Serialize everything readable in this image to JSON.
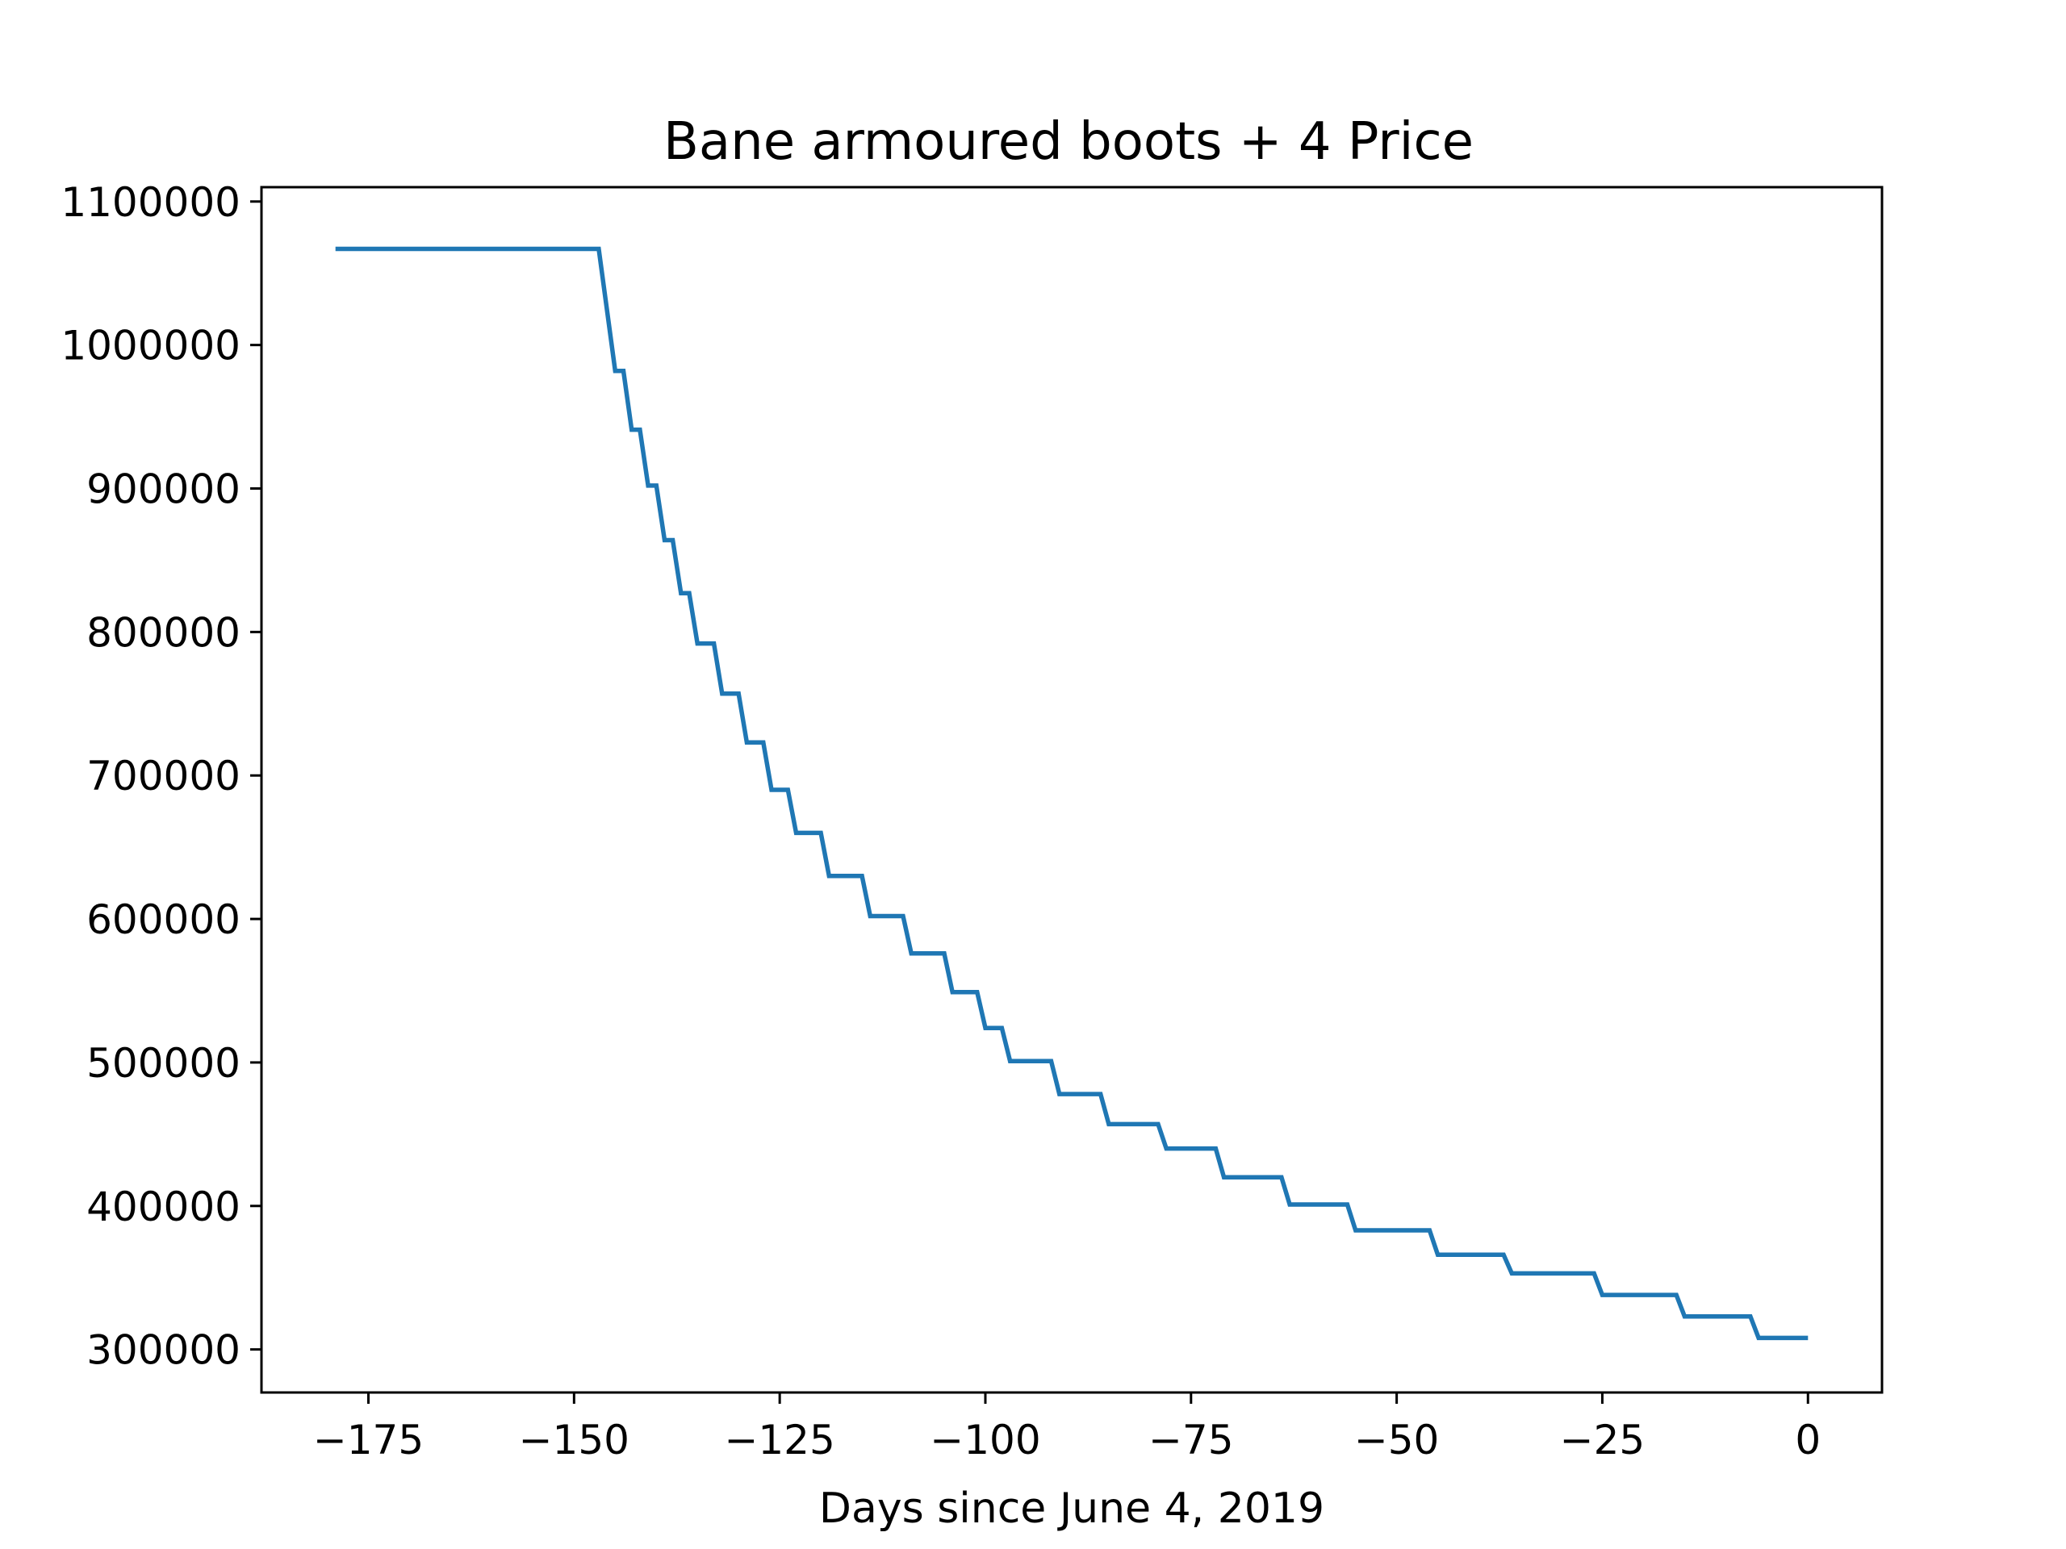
{
  "chart_data": {
    "type": "line",
    "title": "Bane armoured boots + 4 Price",
    "xlabel": "Days since June 4, 2019",
    "ylabel": "",
    "xlim": [
      -188,
      9
    ],
    "ylim": [
      270000,
      1110000
    ],
    "xticks": [
      -175,
      -150,
      -125,
      -100,
      -75,
      -50,
      -25,
      0
    ],
    "xtick_labels": [
      "−175",
      "−150",
      "−125",
      "−100",
      "−75",
      "−50",
      "−25",
      "0"
    ],
    "yticks": [
      300000,
      400000,
      500000,
      600000,
      700000,
      800000,
      900000,
      1000000,
      1100000
    ],
    "ytick_labels": [
      "300000",
      "400000",
      "500000",
      "600000",
      "700000",
      "800000",
      "900000",
      "1000000",
      "1100000"
    ],
    "grid": false,
    "series_color": "#1f77b4",
    "series": [
      {
        "name": "",
        "points": [
          [
            -179,
            1067000
          ],
          [
            -147,
            1067000
          ],
          [
            -145,
            982000
          ],
          [
            -144,
            982000
          ],
          [
            -143,
            941000
          ],
          [
            -142,
            941000
          ],
          [
            -141,
            902000
          ],
          [
            -140,
            902000
          ],
          [
            -139,
            864000
          ],
          [
            -138,
            864000
          ],
          [
            -137,
            827000
          ],
          [
            -136,
            827000
          ],
          [
            -135,
            792000
          ],
          [
            -133,
            792000
          ],
          [
            -132,
            757000
          ],
          [
            -130,
            757000
          ],
          [
            -129,
            723000
          ],
          [
            -127,
            723000
          ],
          [
            -126,
            690000
          ],
          [
            -124,
            690000
          ],
          [
            -123,
            660000
          ],
          [
            -120,
            660000
          ],
          [
            -119,
            630000
          ],
          [
            -115,
            630000
          ],
          [
            -114,
            602000
          ],
          [
            -110,
            602000
          ],
          [
            -109,
            576000
          ],
          [
            -105,
            576000
          ],
          [
            -104,
            549000
          ],
          [
            -101,
            549000
          ],
          [
            -100,
            524000
          ],
          [
            -98,
            524000
          ],
          [
            -97,
            501000
          ],
          [
            -92,
            501000
          ],
          [
            -91,
            478000
          ],
          [
            -86,
            478000
          ],
          [
            -85,
            457000
          ],
          [
            -79,
            457000
          ],
          [
            -78,
            440000
          ],
          [
            -72,
            440000
          ],
          [
            -71,
            420000
          ],
          [
            -64,
            420000
          ],
          [
            -63,
            401000
          ],
          [
            -56,
            401000
          ],
          [
            -55,
            383000
          ],
          [
            -46,
            383000
          ],
          [
            -45,
            366000
          ],
          [
            -37,
            366000
          ],
          [
            -36,
            353000
          ],
          [
            -26,
            353000
          ],
          [
            -25,
            338000
          ],
          [
            -16,
            338000
          ],
          [
            -15,
            323000
          ],
          [
            -7,
            323000
          ],
          [
            -6,
            308000
          ],
          [
            0,
            308000
          ]
        ]
      }
    ]
  }
}
